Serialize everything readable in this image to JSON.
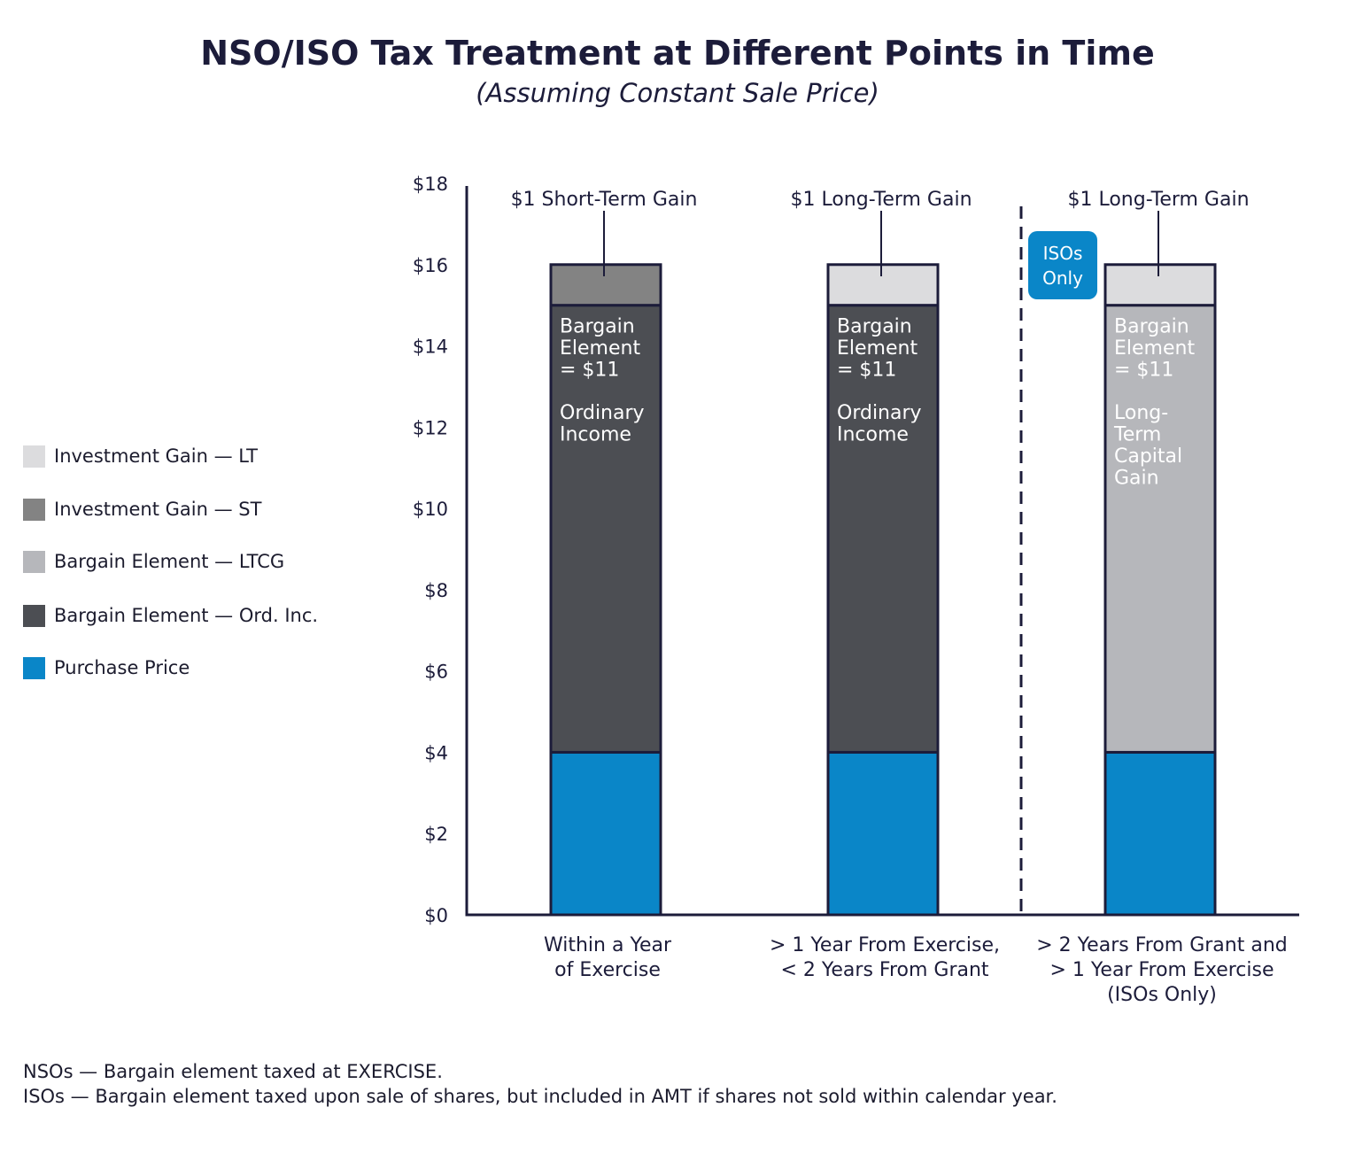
{
  "chart_data": {
    "type": "bar",
    "stacked": true,
    "title": "NSO/ISO Tax Treatment at Different Points in Time",
    "subtitle": "(Assuming Constant Sale Price)",
    "categories": [
      [
        "Within a Year",
        "of Exercise"
      ],
      [
        "> 1 Year From Exercise,",
        "< 2 Years From Grant"
      ],
      [
        "> 2 Years From Grant and",
        "> 1 Year From Exercise",
        "(ISOs Only)"
      ]
    ],
    "series": [
      {
        "name": "Purchase Price",
        "color": "#0a86c8",
        "values": [
          4,
          4,
          4
        ]
      },
      {
        "name": "Bargain Element — Ord. Inc.",
        "color": "#4c4e53",
        "values": [
          11,
          11,
          0
        ]
      },
      {
        "name": "Bargain Element — LTCG",
        "color": "#b6b7bb",
        "values": [
          0,
          0,
          11
        ]
      },
      {
        "name": "Investment Gain — ST",
        "color": "#838383",
        "values": [
          1,
          0,
          0
        ]
      },
      {
        "name": "Investment Gain — LT",
        "color": "#dcdcde",
        "values": [
          0,
          1,
          1
        ]
      }
    ],
    "ylim": [
      0,
      18
    ],
    "yticks": [
      "$0",
      "$2",
      "$4",
      "$6",
      "$8",
      "$10",
      "$12",
      "$14",
      "$16",
      "$18"
    ],
    "ytick_values": [
      0,
      2,
      4,
      6,
      8,
      10,
      12,
      14,
      16,
      18
    ],
    "xlabel": "",
    "ylabel": "",
    "bar_annotations": [
      [
        "Bargain",
        "Element",
        "= $11",
        "",
        "Ordinary",
        "Income"
      ],
      [
        "Bargain",
        "Element",
        "= $11",
        "",
        "Ordinary",
        "Income"
      ],
      [
        "Bargain",
        "Element",
        "= $11",
        "",
        "Long-",
        "Term",
        "Capital",
        "Gain"
      ]
    ],
    "top_callouts": [
      "$1 Short-Term Gain",
      "$1 Long-Term Gain",
      "$1 Long-Term Gain"
    ],
    "divider_badge": [
      "ISOs",
      "Only"
    ],
    "legend": [
      {
        "label": "Investment Gain — LT",
        "color": "#dcdcde"
      },
      {
        "label": "Investment Gain — ST",
        "color": "#838383"
      },
      {
        "label": "Bargain Element — LTCG",
        "color": "#b6b7bb"
      },
      {
        "label": "Bargain Element — Ord. Inc.",
        "color": "#4c4e53"
      },
      {
        "label": "Purchase Price",
        "color": "#0a86c8"
      }
    ]
  },
  "footnotes": {
    "nso": "NSOs — Bargain element taxed at EXERCISE.",
    "iso": "ISOs — Bargain element taxed upon sale of shares, but included in AMT if shares not sold within calendar year."
  }
}
